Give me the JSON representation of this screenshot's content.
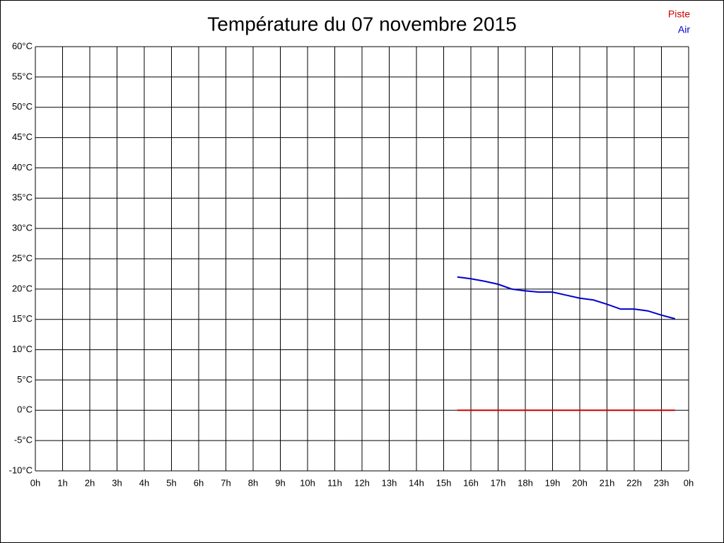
{
  "chart_data": {
    "type": "line",
    "title": "Température du 07 novembre 2015",
    "x": [
      15.5,
      16,
      16.5,
      17,
      17.5,
      18,
      18.5,
      19,
      19.5,
      20,
      20.5,
      21,
      21.5,
      22,
      22.5,
      23,
      23.5
    ],
    "series": [
      {
        "name": "Piste",
        "color": "#cc0000",
        "values": [
          0,
          0,
          0,
          0,
          0,
          0,
          0,
          0,
          0,
          0,
          0,
          0,
          0,
          0,
          0,
          0,
          0
        ]
      },
      {
        "name": "Air",
        "color": "#0000cc",
        "values": [
          22.0,
          21.7,
          21.3,
          20.8,
          20.0,
          19.7,
          19.5,
          19.5,
          19.0,
          18.5,
          18.2,
          17.5,
          16.7,
          16.7,
          16.4,
          15.7,
          15.1
        ]
      }
    ],
    "xlim": [
      0,
      24
    ],
    "xticks": [
      {
        "value": 0,
        "label": "0h"
      },
      {
        "value": 1,
        "label": "1h"
      },
      {
        "value": 2,
        "label": "2h"
      },
      {
        "value": 3,
        "label": "3h"
      },
      {
        "value": 4,
        "label": "4h"
      },
      {
        "value": 5,
        "label": "5h"
      },
      {
        "value": 6,
        "label": "6h"
      },
      {
        "value": 7,
        "label": "7h"
      },
      {
        "value": 8,
        "label": "8h"
      },
      {
        "value": 9,
        "label": "9h"
      },
      {
        "value": 10,
        "label": "10h"
      },
      {
        "value": 11,
        "label": "11h"
      },
      {
        "value": 12,
        "label": "12h"
      },
      {
        "value": 13,
        "label": "13h"
      },
      {
        "value": 14,
        "label": "14h"
      },
      {
        "value": 15,
        "label": "15h"
      },
      {
        "value": 16,
        "label": "16h"
      },
      {
        "value": 17,
        "label": "17h"
      },
      {
        "value": 18,
        "label": "18h"
      },
      {
        "value": 19,
        "label": "19h"
      },
      {
        "value": 20,
        "label": "20h"
      },
      {
        "value": 21,
        "label": "21h"
      },
      {
        "value": 22,
        "label": "22h"
      },
      {
        "value": 23,
        "label": "23h"
      },
      {
        "value": 24,
        "label": "0h"
      }
    ],
    "ylim": [
      -10,
      60
    ],
    "yticks": [
      {
        "value": -10,
        "label": "-10°C"
      },
      {
        "value": -5,
        "label": "-5°C"
      },
      {
        "value": 0,
        "label": "0°C"
      },
      {
        "value": 5,
        "label": "5°C"
      },
      {
        "value": 10,
        "label": "10°C"
      },
      {
        "value": 15,
        "label": "15°C"
      },
      {
        "value": 20,
        "label": "20°C"
      },
      {
        "value": 25,
        "label": "25°C"
      },
      {
        "value": 30,
        "label": "30°C"
      },
      {
        "value": 35,
        "label": "35°C"
      },
      {
        "value": 40,
        "label": "40°C"
      },
      {
        "value": 45,
        "label": "45°C"
      },
      {
        "value": 50,
        "label": "50°C"
      },
      {
        "value": 55,
        "label": "55°C"
      },
      {
        "value": 60,
        "label": "60°C"
      }
    ],
    "grid": true,
    "legend": "top-right"
  }
}
